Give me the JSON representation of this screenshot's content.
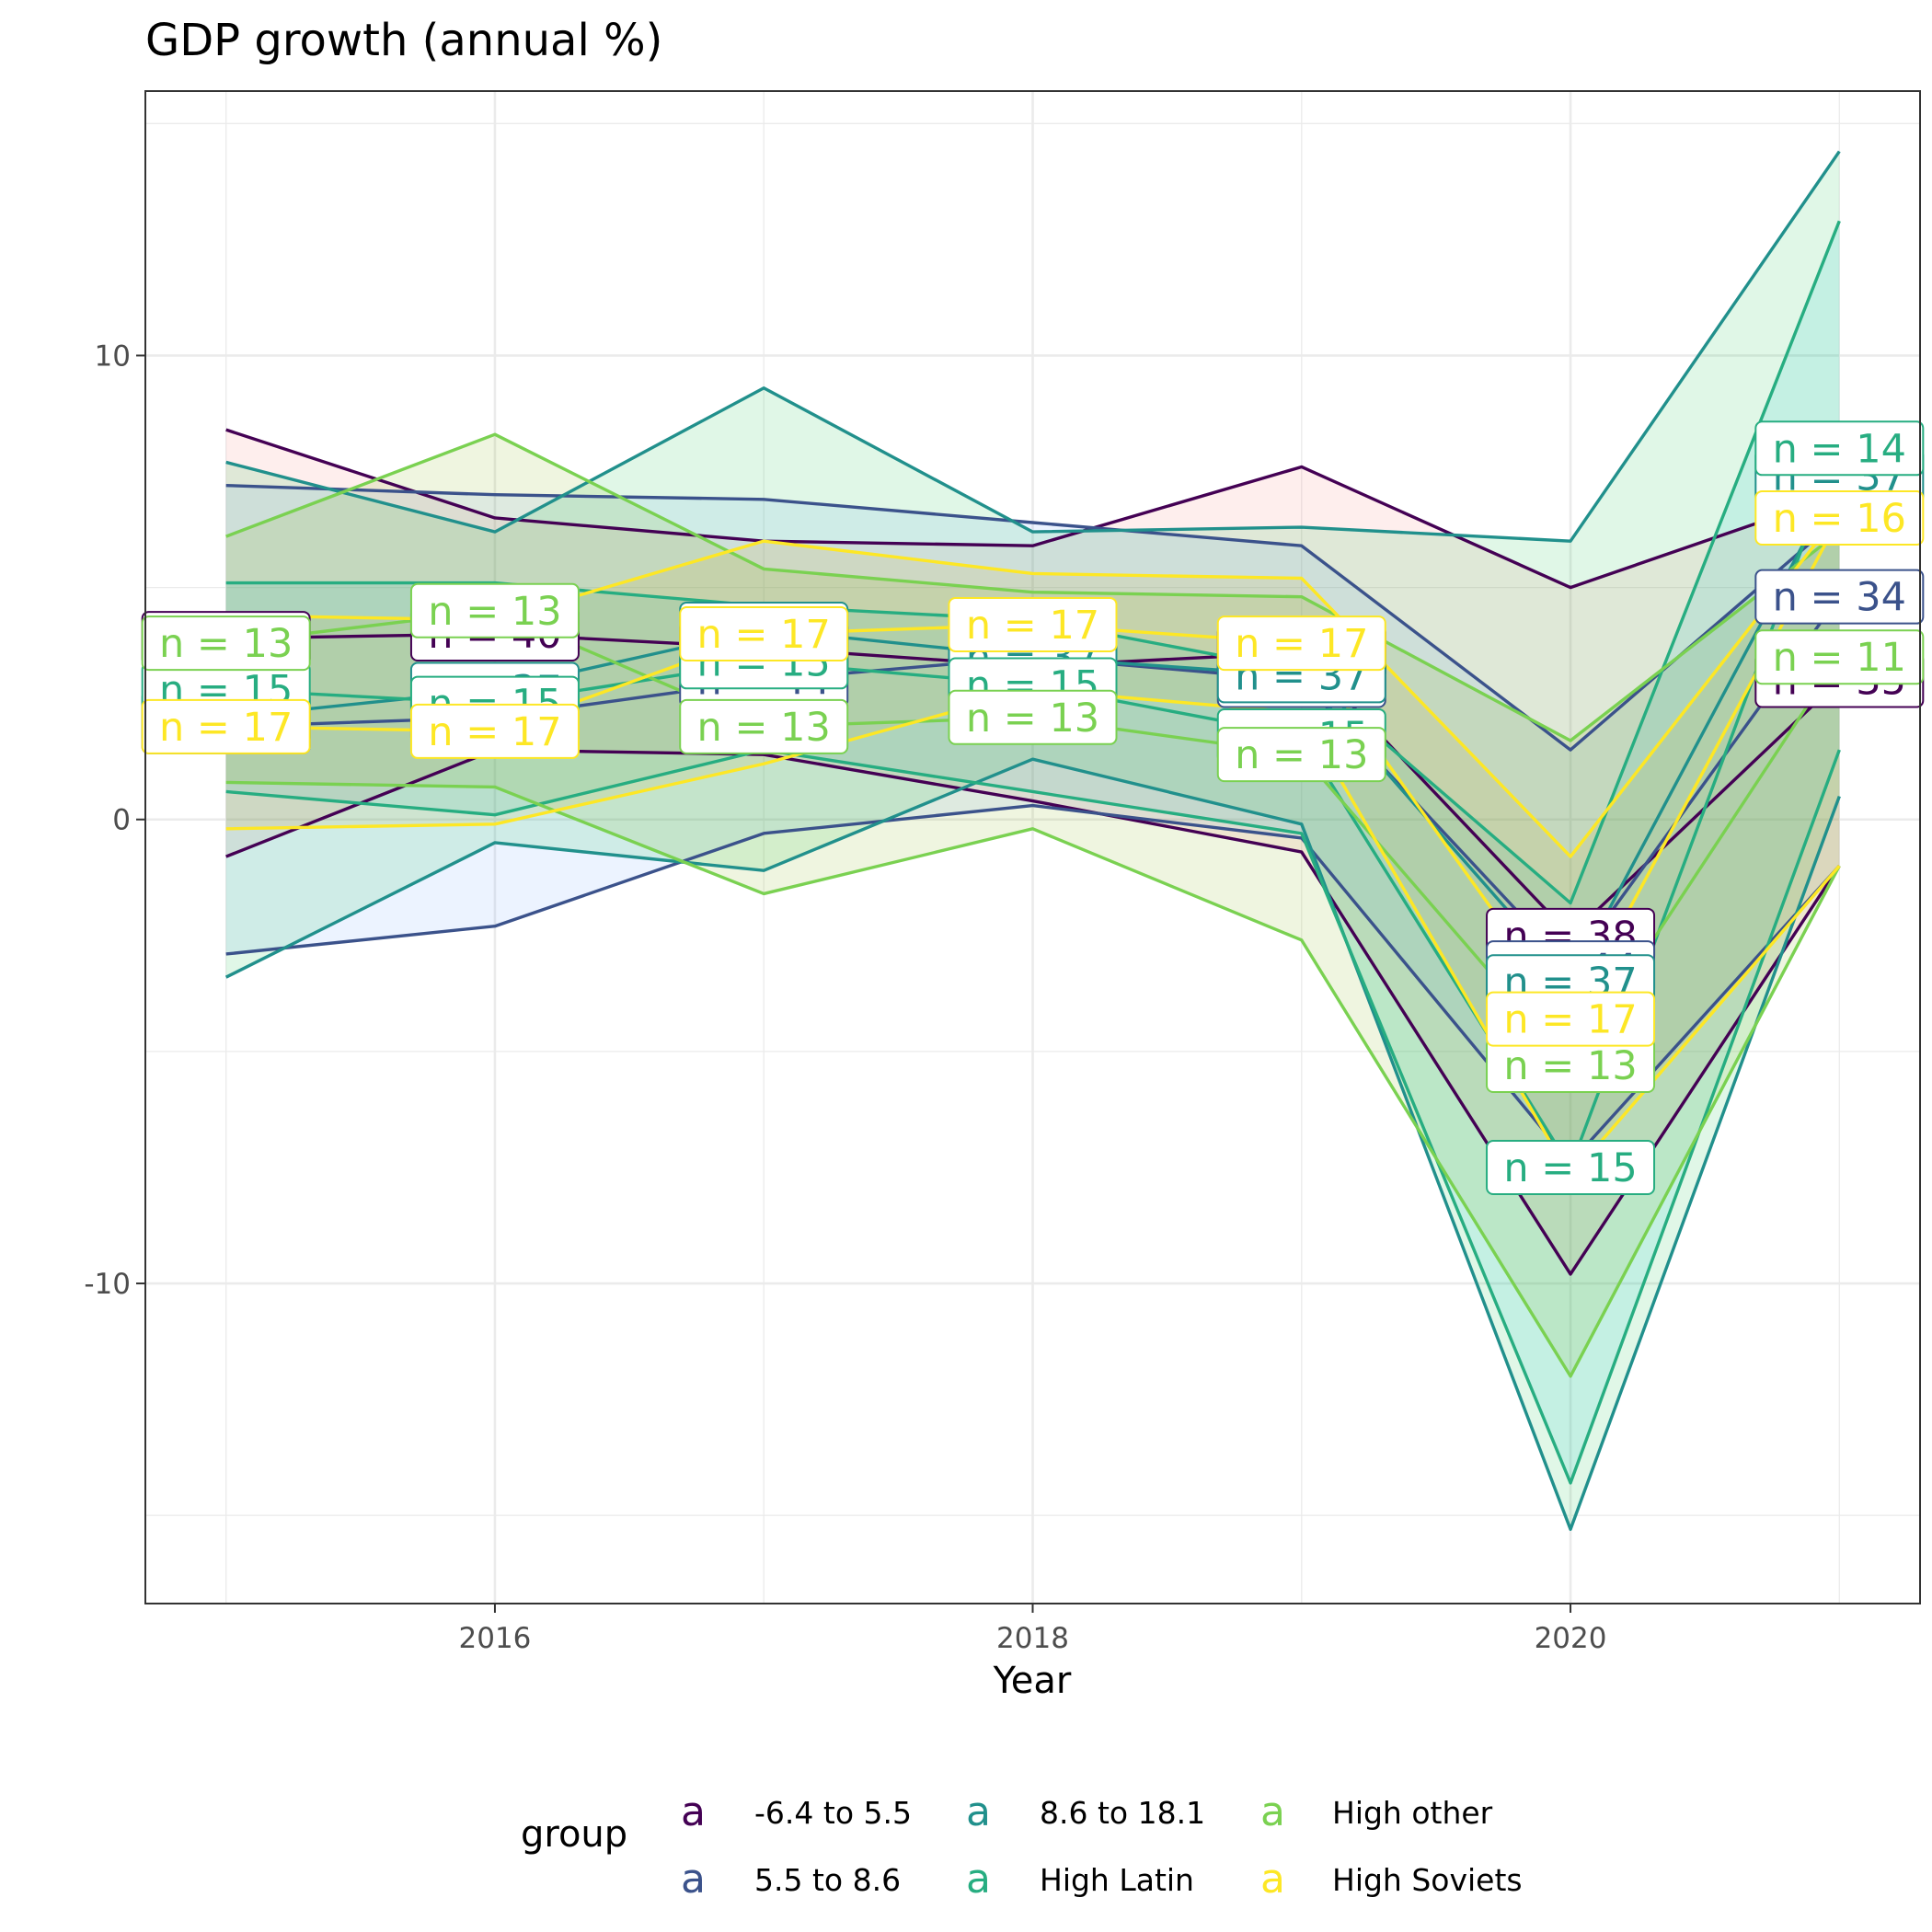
{
  "chart_data": {
    "type": "line",
    "title": "GDP growth (annual %)",
    "xlabel": "Year",
    "ylabel": "",
    "xlim": [
      2014.7,
      2021.3
    ],
    "ylim": [
      -16.9,
      15.7
    ],
    "x_ticks": [
      2016,
      2018,
      2020
    ],
    "y_ticks": [
      -10,
      0,
      10
    ],
    "grid": true,
    "legend": {
      "title": "group",
      "position": "bottom",
      "key_glyph": "a",
      "entries": [
        "-6.4 to 5.5",
        "5.5 to 8.6",
        "8.6 to 18.1",
        "High Latin",
        "High other",
        "High Soviets"
      ]
    },
    "x": [
      2015,
      2016,
      2017,
      2018,
      2019,
      2020,
      2021
    ],
    "series": [
      {
        "name": "-6.4 to 5.5",
        "color": "#440154",
        "fill": "#F8766D",
        "upper": [
          8.4,
          6.5,
          6.0,
          5.9,
          7.6,
          5.0,
          7.0
        ],
        "median": [
          3.9,
          4.0,
          3.7,
          3.3,
          3.6,
          -2.5,
          3.0
        ],
        "lower": [
          -0.8,
          1.5,
          1.4,
          0.4,
          -0.7,
          -9.8,
          -1.0
        ],
        "n": [
          41,
          40,
          40,
          40,
          40,
          38,
          35
        ]
      },
      {
        "name": "5.5 to 8.6",
        "color": "#3b528b",
        "fill": "#619CFF",
        "upper": [
          7.2,
          7.0,
          6.9,
          6.4,
          5.9,
          1.5,
          6.5
        ],
        "median": [
          2.0,
          2.2,
          3.0,
          3.5,
          3.0,
          -3.2,
          4.8
        ],
        "lower": [
          -2.9,
          -2.3,
          -0.3,
          0.3,
          -0.4,
          -7.4,
          -1.0
        ],
        "n": [
          44,
          44,
          44,
          44,
          44,
          44,
          34
        ]
      },
      {
        "name": "8.6 to 18.1",
        "color": "#21908c",
        "fill": "#00BA38",
        "upper": [
          7.7,
          6.2,
          9.3,
          6.2,
          6.3,
          6.0,
          14.4
        ],
        "median": [
          2.2,
          2.8,
          4.1,
          3.5,
          3.1,
          -3.5,
          7.4
        ],
        "lower": [
          -3.4,
          -0.5,
          -1.1,
          1.3,
          -0.1,
          -15.3,
          0.5
        ],
        "n": [
          37,
          37,
          37,
          37,
          37,
          37,
          37
        ]
      },
      {
        "name": "High Latin",
        "color": "#27ad81",
        "fill": "#00BFC4",
        "upper": [
          5.1,
          5.1,
          4.6,
          4.3,
          3.2,
          -1.8,
          12.9
        ],
        "median": [
          2.8,
          2.5,
          3.4,
          2.9,
          1.8,
          -7.5,
          8.0
        ],
        "lower": [
          0.6,
          0.1,
          1.5,
          0.6,
          -0.3,
          -14.3,
          1.5
        ],
        "n": [
          15,
          15,
          15,
          15,
          15,
          15,
          14
        ]
      },
      {
        "name": "High other",
        "color": "#7ad151",
        "fill": "#7CAE00",
        "upper": [
          6.1,
          8.3,
          5.4,
          4.9,
          4.8,
          1.7,
          6.2
        ],
        "median": [
          3.8,
          4.5,
          2.0,
          2.2,
          1.4,
          -5.3,
          3.5
        ],
        "lower": [
          0.8,
          0.7,
          -1.6,
          -0.2,
          -2.6,
          -12.0,
          -1.0
        ],
        "n": [
          13,
          13,
          13,
          13,
          13,
          13,
          11
        ]
      },
      {
        "name": "High Soviets",
        "color": "#fde725",
        "fill": "#CDAB2C",
        "upper": [
          4.4,
          4.3,
          6.0,
          5.3,
          5.2,
          -0.8,
          6.6
        ],
        "median": [
          2.0,
          1.9,
          4.0,
          4.2,
          3.8,
          -4.3,
          6.5
        ],
        "lower": [
          -0.2,
          -0.1,
          1.2,
          2.8,
          2.3,
          -7.7,
          -1.0
        ],
        "n": [
          17,
          17,
          17,
          17,
          17,
          17,
          16
        ]
      }
    ]
  }
}
